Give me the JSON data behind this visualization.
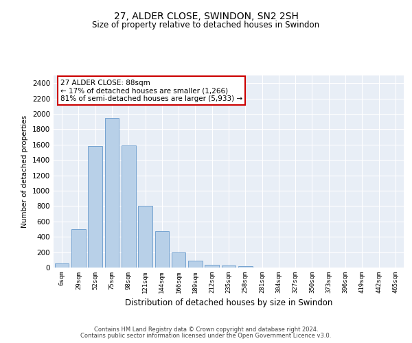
{
  "title": "27, ALDER CLOSE, SWINDON, SN2 2SH",
  "subtitle": "Size of property relative to detached houses in Swindon",
  "xlabel": "Distribution of detached houses by size in Swindon",
  "ylabel": "Number of detached properties",
  "categories": [
    "6sqm",
    "29sqm",
    "52sqm",
    "75sqm",
    "98sqm",
    "121sqm",
    "144sqm",
    "166sqm",
    "189sqm",
    "212sqm",
    "235sqm",
    "258sqm",
    "281sqm",
    "304sqm",
    "327sqm",
    "350sqm",
    "373sqm",
    "396sqm",
    "419sqm",
    "442sqm",
    "465sqm"
  ],
  "bar_heights": [
    55,
    500,
    1580,
    1950,
    1590,
    800,
    475,
    195,
    90,
    32,
    25,
    18,
    0,
    0,
    0,
    0,
    0,
    0,
    0,
    0,
    0
  ],
  "bar_color": "#b8d0e8",
  "bar_edge_color": "#6699cc",
  "ylim": [
    0,
    2500
  ],
  "yticks": [
    0,
    200,
    400,
    600,
    800,
    1000,
    1200,
    1400,
    1600,
    1800,
    2000,
    2200,
    2400
  ],
  "annotation_text": "27 ALDER CLOSE: 88sqm\n← 17% of detached houses are smaller (1,266)\n81% of semi-detached houses are larger (5,933) →",
  "annotation_box_color": "#ffffff",
  "annotation_box_edgecolor": "#cc0000",
  "plot_bg_color": "#e8eef6",
  "footer_line1": "Contains HM Land Registry data © Crown copyright and database right 2024.",
  "footer_line2": "Contains public sector information licensed under the Open Government Licence v3.0."
}
